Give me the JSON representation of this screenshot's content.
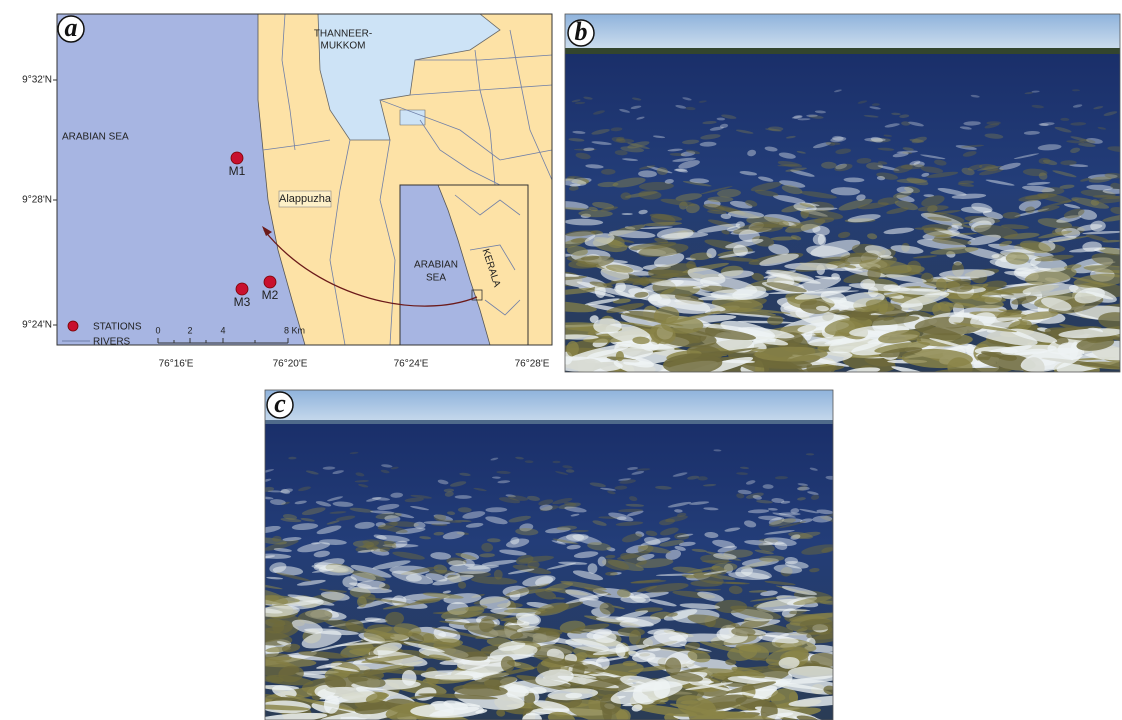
{
  "map": {
    "panel_label": "a",
    "lagoon_label": [
      "THANNEER-",
      "MUKKOM"
    ],
    "sea_label": "ARABIAN SEA",
    "town_label": "Alappuzha",
    "stations": [
      "M1",
      "M2",
      "M3"
    ],
    "inset": {
      "sea_label": [
        "ARABIAN",
        "SEA"
      ],
      "state_label": "KERALA"
    },
    "legend": {
      "stations": "STATIONS",
      "rivers": "RIVERS"
    },
    "scale_ticks": [
      "0",
      "2",
      "4",
      "8 Km"
    ],
    "latitude_labels": [
      "9°32'N",
      "9°28'N",
      "9°24'N"
    ],
    "longitude_labels": [
      "76°16'E",
      "76°20'E",
      "76°24'E",
      "76°28'E"
    ]
  },
  "photo_b": {
    "panel_label": "b"
  },
  "photo_c": {
    "panel_label": "c"
  }
}
